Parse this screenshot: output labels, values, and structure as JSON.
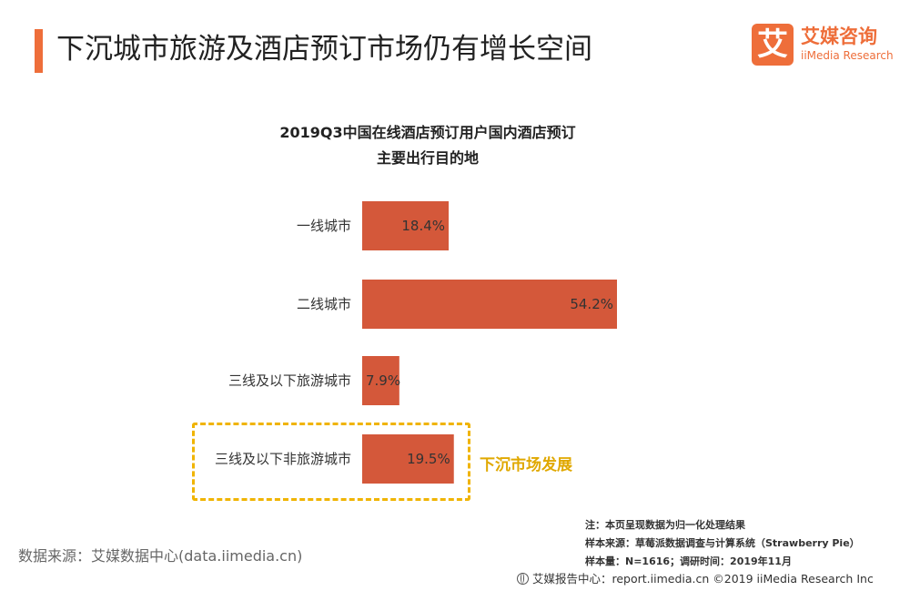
{
  "header": {
    "title": "下沉城市旅游及酒店预订市场仍有增长空间",
    "accent_color": "#ee6e3a"
  },
  "logo": {
    "glyph": "艾",
    "name_cn": "艾媒咨询",
    "name_en": "iiMedia Research",
    "color": "#ee6e3a"
  },
  "chart_data": {
    "type": "bar",
    "orientation": "horizontal",
    "title": [
      "2019Q3中国在线酒店预订用户国内酒店预订",
      "主要出行目的地"
    ],
    "categories": [
      "一线城市",
      "二线城市",
      "三线及以下旅游城市",
      "三线及以下非旅游城市"
    ],
    "values": [
      18.4,
      54.2,
      7.9,
      19.5
    ],
    "value_labels": [
      "18.4%",
      "54.2%",
      "7.9%",
      "19.5%"
    ],
    "unit": "%",
    "bar_color": "#d4583a",
    "xlim": [
      0,
      54.2
    ],
    "grid": false,
    "legend": "none"
  },
  "highlight": {
    "label": "下沉市场发展",
    "color": "#e0a800"
  },
  "source": "数据来源：艾媒数据中心(data.iimedia.cn)",
  "notes": [
    "注：本页呈现数据为归一化处理结果",
    "样本来源：草莓派数据调查与计算系统（Strawberry  Pie）",
    "样本量：N=1616；调研时间：2019年11月"
  ],
  "footer": "艾媒报告中心：report.iimedia.cn  ©2019  iiMedia Research  Inc"
}
